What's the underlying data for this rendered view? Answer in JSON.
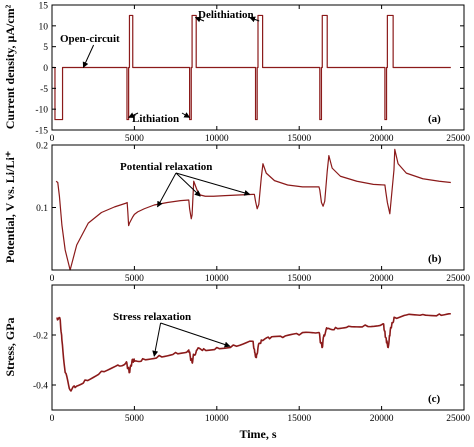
{
  "chart_data": [
    {
      "type": "line",
      "panel": "a",
      "panel_label": "(a)",
      "ylabel": "Current density, μA/cm²",
      "xlim": [
        0,
        25000
      ],
      "ylim": [
        -15,
        15
      ],
      "yticks": [
        -15,
        -10,
        -5,
        0,
        5,
        10,
        15
      ],
      "xticks": [
        0,
        5000,
        10000,
        15000,
        20000,
        25000
      ],
      "xtick_labels": [
        "0",
        "5000",
        "10000",
        "15000",
        "20000",
        "25000"
      ],
      "series": [
        {
          "color": "#8b1a1a",
          "x": [
            0,
            180,
            180,
            640,
            640,
            1170,
            1170,
            4550,
            4550,
            4650,
            4650,
            4700,
            4700,
            4900,
            4900,
            8350,
            8350,
            8450,
            8450,
            8500,
            8500,
            8750,
            8750,
            12350,
            12350,
            12450,
            12450,
            12500,
            12500,
            12780,
            12780,
            16250,
            16250,
            16350,
            16350,
            16400,
            16400,
            16700,
            16700,
            20200,
            20200,
            20300,
            20300,
            20350,
            20350,
            20700,
            20700,
            24200
          ],
          "y": [
            0,
            0,
            -12.5,
            -12.5,
            0,
            0,
            0,
            0,
            -12.5,
            -12.5,
            0,
            0,
            12.5,
            12.5,
            0,
            0,
            -12.5,
            -12.5,
            0,
            0,
            12.5,
            12.5,
            0,
            0,
            -12.5,
            -12.5,
            0,
            0,
            12.5,
            12.5,
            0,
            0,
            -12.5,
            -12.5,
            0,
            0,
            12.5,
            12.5,
            0,
            0,
            -12.5,
            -12.5,
            0,
            0,
            12.5,
            12.5,
            0,
            0
          ]
        }
      ],
      "annotations": [
        {
          "text": "Open-circuit",
          "target": [
            1900,
            0
          ]
        },
        {
          "text": "Lithiation",
          "targets": [
            [
              4650,
              -12
            ],
            [
              8350,
              -12
            ]
          ]
        },
        {
          "text": "Delithiation",
          "targets": [
            [
              8700,
              12
            ],
            [
              12000,
              12
            ]
          ]
        }
      ]
    },
    {
      "type": "line",
      "panel": "b",
      "panel_label": "(b)",
      "ylabel": "Potential, V vs. Li/Li⁺",
      "xlim": [
        0,
        25000
      ],
      "ylim": [
        0,
        0.2
      ],
      "yticks": [
        0.1,
        0.2
      ],
      "xticks": [
        0,
        5000,
        10000,
        15000,
        20000,
        25000
      ],
      "xtick_labels": [
        "0",
        "5000",
        "10000",
        "15000",
        "20000",
        "25000"
      ],
      "series": [
        {
          "color": "#8b1a1a",
          "x": [
            250,
            350,
            450,
            600,
            800,
            1100,
            1500,
            2200,
            3000,
            3800,
            4500,
            4560,
            4600,
            4650,
            4700,
            4800,
            4900,
            5000,
            5200,
            5600,
            6200,
            7000,
            7800,
            8300,
            8350,
            8450,
            8500,
            8600,
            8800,
            9000,
            9300,
            9800,
            10500,
            11300,
            12200,
            12280,
            12350,
            12450,
            12550,
            12700,
            12800,
            13000,
            13500,
            14300,
            15200,
            16200,
            16250,
            16350,
            16450,
            16550,
            16700,
            16800,
            17000,
            17500,
            18500,
            19500,
            20200,
            20250,
            20350,
            20500,
            20750,
            20800,
            21000,
            21500,
            22500,
            23500,
            24200
          ],
          "y": [
            0.142,
            0.14,
            0.118,
            0.072,
            0.032,
            0.0,
            0.04,
            0.075,
            0.092,
            0.101,
            0.107,
            0.108,
            0.093,
            0.071,
            0.075,
            0.08,
            0.085,
            0.089,
            0.093,
            0.098,
            0.104,
            0.108,
            0.111,
            0.112,
            0.098,
            0.082,
            0.088,
            0.142,
            0.128,
            0.12,
            0.118,
            0.118,
            0.119,
            0.12,
            0.121,
            0.121,
            0.11,
            0.098,
            0.105,
            0.148,
            0.17,
            0.155,
            0.143,
            0.136,
            0.133,
            0.133,
            0.128,
            0.108,
            0.102,
            0.11,
            0.158,
            0.183,
            0.163,
            0.15,
            0.142,
            0.137,
            0.136,
            0.126,
            0.108,
            0.09,
            0.16,
            0.193,
            0.17,
            0.155,
            0.146,
            0.142,
            0.14
          ]
        }
      ],
      "annotations": [
        {
          "text": "Potential relaxation",
          "targets": [
            [
              6400,
              0.101
            ],
            [
              9000,
              0.118
            ],
            [
              12000,
              0.121
            ]
          ]
        }
      ]
    },
    {
      "type": "line",
      "panel": "c",
      "panel_label": "(c)",
      "ylabel": "Stress, GPa",
      "xlabel": "Time, s",
      "xlim": [
        0,
        25000
      ],
      "ylim": [
        -0.5,
        0
      ],
      "yticks": [
        -0.4,
        -0.2
      ],
      "xticks": [
        0,
        5000,
        10000,
        15000,
        20000,
        25000
      ],
      "xtick_labels": [
        "0",
        "5000",
        "10000",
        "15000",
        "20000",
        "25000"
      ],
      "series": [
        {
          "color": "#8b1a1a",
          "x": [
            300,
            500,
            600,
            800,
            1100,
            1400,
            2000,
            3000,
            4000,
            4500,
            4600,
            4700,
            4800,
            4900,
            5000,
            5500,
            6500,
            7500,
            8300,
            8400,
            8500,
            8600,
            8800,
            9200,
            10000,
            11000,
            12200,
            12300,
            12400,
            12500,
            12700,
            13200,
            14000,
            15000,
            16200,
            16300,
            16400,
            16500,
            16700,
            17200,
            18000,
            19000,
            20100,
            20250,
            20400,
            20550,
            20800,
            21500,
            22500,
            23500,
            24200
          ],
          "y": [
            -0.13,
            -0.14,
            -0.22,
            -0.35,
            -0.42,
            -0.41,
            -0.38,
            -0.345,
            -0.32,
            -0.31,
            -0.33,
            -0.35,
            -0.32,
            -0.3,
            -0.305,
            -0.295,
            -0.282,
            -0.27,
            -0.26,
            -0.29,
            -0.31,
            -0.28,
            -0.26,
            -0.255,
            -0.25,
            -0.24,
            -0.225,
            -0.27,
            -0.29,
            -0.25,
            -0.22,
            -0.215,
            -0.21,
            -0.2,
            -0.19,
            -0.23,
            -0.25,
            -0.2,
            -0.175,
            -0.17,
            -0.165,
            -0.16,
            -0.155,
            -0.21,
            -0.25,
            -0.17,
            -0.13,
            -0.12,
            -0.118,
            -0.116,
            -0.115
          ]
        }
      ],
      "annotations": [
        {
          "text": "Stress relaxation",
          "targets": [
            [
              6200,
              -0.285
            ],
            [
              10800,
              -0.245
            ]
          ]
        }
      ]
    }
  ]
}
